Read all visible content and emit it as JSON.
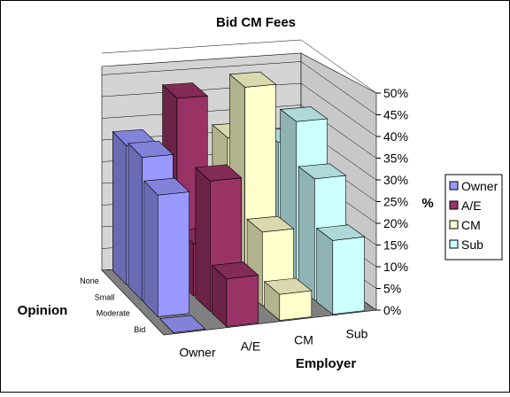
{
  "chart_data": {
    "type": "bar3d",
    "title": "Bid CM Fees",
    "x_label": "Employer",
    "depth_label": "Opinion",
    "y_label": "%",
    "categories": [
      "Owner",
      "A/E",
      "CM",
      "Sub"
    ],
    "depth_categories": [
      "None",
      "Small",
      "Moderate",
      "Bid"
    ],
    "series": [
      {
        "name": "Owner",
        "color": "#9999ff",
        "values": [
          32,
          33,
          28,
          0
        ]
      },
      {
        "name": "A/E",
        "color": "#993366",
        "values": [
          42,
          12,
          30,
          11
        ]
      },
      {
        "name": "CM",
        "color": "#ffffcc",
        "values": [
          32,
          47,
          17,
          6
        ]
      },
      {
        "name": "Sub",
        "color": "#ccffff",
        "values": [
          30,
          38,
          28,
          17
        ]
      }
    ],
    "ylim": [
      0,
      50
    ],
    "yticks": [
      {
        "value": 0,
        "label": "0%"
      },
      {
        "value": 5,
        "label": "5%"
      },
      {
        "value": 10,
        "label": "10%"
      },
      {
        "value": 15,
        "label": "15%"
      },
      {
        "value": 20,
        "label": "20%"
      },
      {
        "value": 25,
        "label": "25%"
      },
      {
        "value": 30,
        "label": "30%"
      },
      {
        "value": 35,
        "label": "35%"
      },
      {
        "value": 40,
        "label": "40%"
      },
      {
        "value": 45,
        "label": "45%"
      },
      {
        "value": 50,
        "label": "50%"
      }
    ],
    "grid": true,
    "legend": "right"
  }
}
